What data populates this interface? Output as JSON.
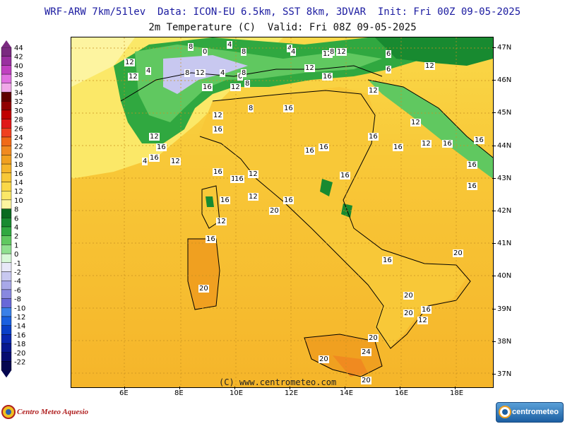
{
  "header": {
    "line1": "WRF-ARW 7km/51lev  Data: ICON-EU 6.5km, SST 8km, 3DVAR  Init: Fri 00Z 09-05-2025",
    "line2": "2m Temperature (C)  Valid: Fri 08Z 09-05-2025"
  },
  "legend": {
    "items": [
      {
        "label": "44",
        "color": "#7a2a80"
      },
      {
        "label": "42",
        "color": "#9a30a0"
      },
      {
        "label": "40",
        "color": "#c040c0"
      },
      {
        "label": "38",
        "color": "#e070e0"
      },
      {
        "label": "36",
        "color": "#f0a8e8"
      },
      {
        "label": "34",
        "color": "#600000"
      },
      {
        "label": "32",
        "color": "#900000"
      },
      {
        "label": "30",
        "color": "#c00000"
      },
      {
        "label": "28",
        "color": "#e01818"
      },
      {
        "label": "26",
        "color": "#f04020"
      },
      {
        "label": "24",
        "color": "#f06a18"
      },
      {
        "label": "22",
        "color": "#f08a20"
      },
      {
        "label": "20",
        "color": "#f0a020"
      },
      {
        "label": "18",
        "color": "#f5b52a"
      },
      {
        "label": "16",
        "color": "#f8c838"
      },
      {
        "label": "14",
        "color": "#fad848"
      },
      {
        "label": "12",
        "color": "#fbe868"
      },
      {
        "label": "10",
        "color": "#fdf4a0"
      },
      {
        "label": "8",
        "color": "#0a6a20"
      },
      {
        "label": "6",
        "color": "#188a30"
      },
      {
        "label": "4",
        "color": "#30a840"
      },
      {
        "label": "2",
        "color": "#60c860"
      },
      {
        "label": "1",
        "color": "#90e090"
      },
      {
        "label": "0",
        "color": "#d8f8d8"
      },
      {
        "label": "-1",
        "color": "#e8e8f8"
      },
      {
        "label": "-2",
        "color": "#c8c8f0"
      },
      {
        "label": "-4",
        "color": "#a8a8e8"
      },
      {
        "label": "-6",
        "color": "#8888e0"
      },
      {
        "label": "-8",
        "color": "#6868d8"
      },
      {
        "label": "-10",
        "color": "#3a80e8"
      },
      {
        "label": "-12",
        "color": "#1a60e0"
      },
      {
        "label": "-14",
        "color": "#0a40c8"
      },
      {
        "label": "-16",
        "color": "#0a28b0"
      },
      {
        "label": "-18",
        "color": "#081890"
      },
      {
        "label": "-20",
        "color": "#060c70"
      },
      {
        "label": "-22",
        "color": "#040650"
      }
    ]
  },
  "axes": {
    "lat_labels": [
      "47N",
      "46N",
      "45N",
      "44N",
      "43N",
      "42N",
      "41N",
      "40N",
      "39N",
      "38N",
      "37N"
    ],
    "lon_labels": [
      "6E",
      "8E",
      "10E",
      "12E",
      "14E",
      "16E",
      "18E"
    ]
  },
  "map_labels": [
    "8",
    "4",
    "4",
    "12",
    "6",
    "0",
    "8",
    "4",
    "8",
    "12",
    "6",
    "12",
    "4",
    "0",
    "8",
    "12",
    "8",
    "12",
    "8",
    "4",
    "12",
    "16",
    "12",
    "16",
    "12",
    "8",
    "16",
    "12",
    "12",
    "16",
    "16",
    "16",
    "12",
    "16",
    "4",
    "12",
    "16",
    "16",
    "16",
    "12",
    "16",
    "12",
    "16",
    "16",
    "16",
    "16",
    "12",
    "16",
    "16",
    "16",
    "16",
    "20",
    "12",
    "16",
    "12",
    "16",
    "16",
    "20",
    "20",
    "20",
    "16",
    "20",
    "20",
    "24",
    "20",
    "20",
    "12"
  ],
  "footer": {
    "copyright": "(C) www.centrometeo.com",
    "logo_left": "Centro Meteo Aquesio",
    "logo_right": "centrometeo"
  },
  "colors": {
    "land_warm": "#f6c63a",
    "sea": "#f6c63a",
    "alps_green": "#188a30"
  }
}
